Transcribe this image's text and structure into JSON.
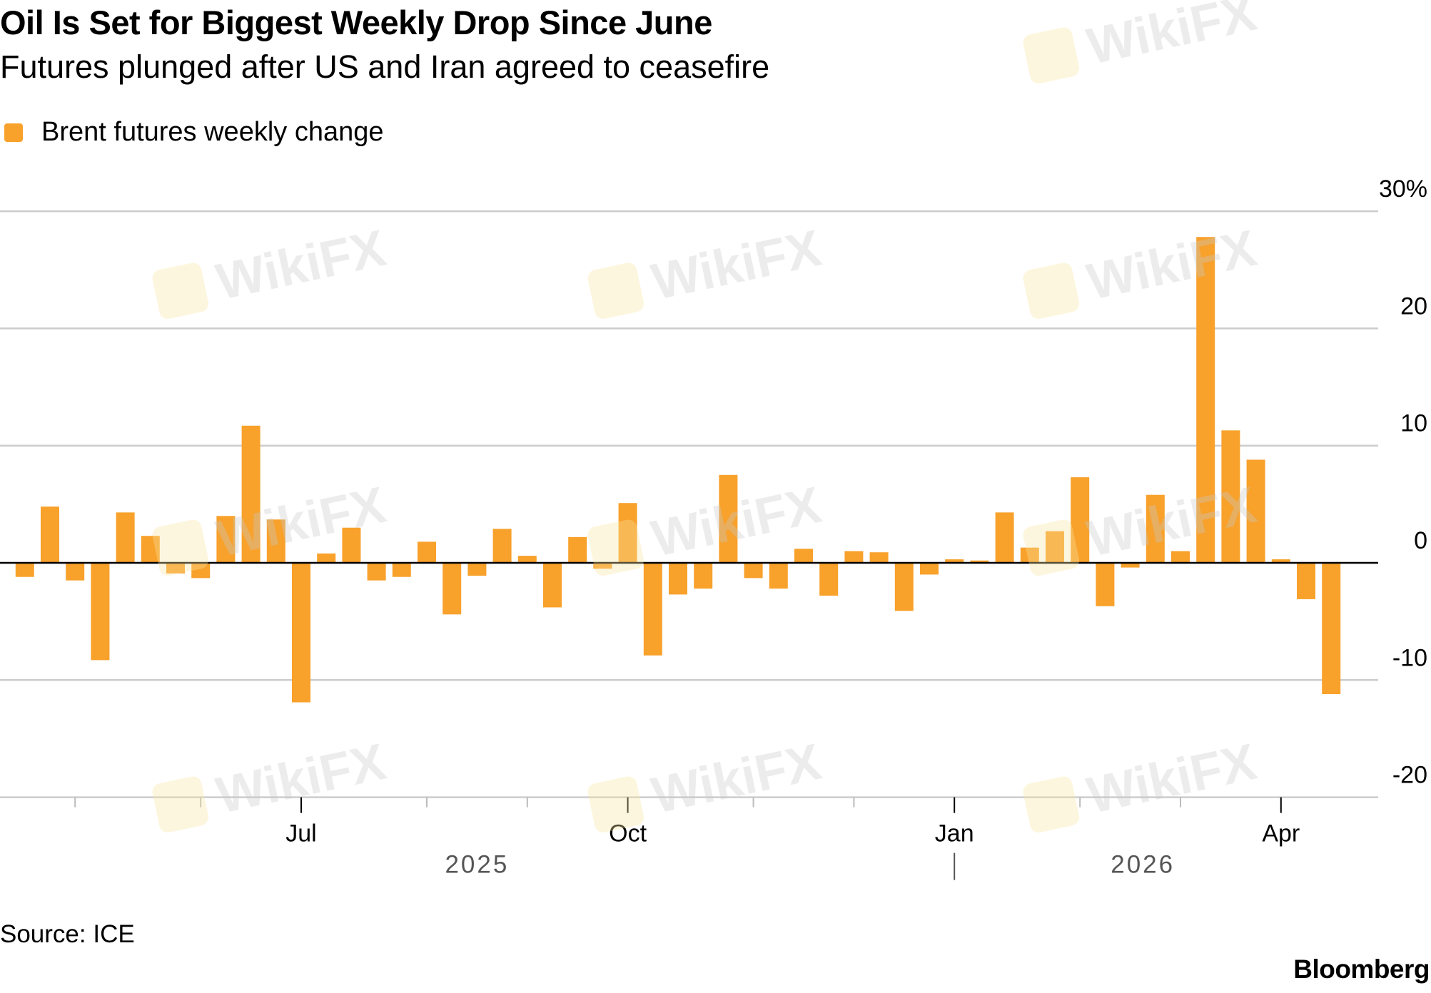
{
  "header": {
    "title": "Oil Is Set for Biggest Weekly Drop Since June",
    "subtitle": "Futures plunged after US and Iran agreed to ceasefire"
  },
  "footer": {
    "source": "Source: ICE",
    "brand": "Bloomberg"
  },
  "watermark": "WikiFX",
  "chart_data": {
    "type": "bar",
    "title": "Oil Is Set for Biggest Weekly Drop Since June",
    "subtitle": "Futures plunged after US and Iran agreed to ceasefire",
    "legend": {
      "position": "top-left"
    },
    "series": [
      {
        "name": "Brent futures weekly change",
        "color": "#F8A12B",
        "values": [
          -1.2,
          4.8,
          -1.5,
          -8.3,
          4.3,
          2.3,
          -0.9,
          -1.3,
          4.0,
          11.7,
          3.7,
          -11.9,
          0.8,
          3.0,
          -1.5,
          -1.2,
          1.8,
          -4.4,
          -1.1,
          2.9,
          0.6,
          -3.8,
          2.2,
          -0.5,
          5.1,
          -7.9,
          -2.7,
          -2.2,
          7.5,
          -1.3,
          -2.2,
          1.2,
          -2.8,
          1.0,
          0.9,
          -4.1,
          -1.0,
          0.3,
          0.2,
          4.3,
          1.3,
          2.7,
          7.3,
          -3.7,
          -0.4,
          5.8,
          1.0,
          27.8,
          11.3,
          8.8,
          0.3,
          -3.1,
          -11.2
        ]
      }
    ],
    "x": [
      "2025-04-17",
      "2025-04-24",
      "2025-05-01",
      "2025-05-08",
      "2025-05-15",
      "2025-05-22",
      "2025-05-29",
      "2025-06-05",
      "2025-06-12",
      "2025-06-19",
      "2025-06-26",
      "2025-07-03",
      "2025-07-10",
      "2025-07-17",
      "2025-07-24",
      "2025-07-31",
      "2025-08-07",
      "2025-08-14",
      "2025-08-21",
      "2025-08-28",
      "2025-09-04",
      "2025-09-11",
      "2025-09-18",
      "2025-09-25",
      "2025-10-02",
      "2025-10-09",
      "2025-10-16",
      "2025-10-23",
      "2025-10-30",
      "2025-11-06",
      "2025-11-13",
      "2025-11-20",
      "2025-11-27",
      "2025-12-04",
      "2025-12-11",
      "2025-12-18",
      "2025-12-25",
      "2026-01-01",
      "2026-01-08",
      "2026-01-15",
      "2026-01-22",
      "2026-01-29",
      "2026-02-05",
      "2026-02-12",
      "2026-02-19",
      "2026-02-26",
      "2026-03-05",
      "2026-03-12",
      "2026-03-19",
      "2026-03-26",
      "2026-04-02",
      "2026-04-09",
      "2026-04-16"
    ],
    "xlabel": "",
    "ylabel": "",
    "ylim": [
      -20,
      30
    ],
    "y_ticks": [
      {
        "value": 30,
        "label": "30%"
      },
      {
        "value": 20,
        "label": "20"
      },
      {
        "value": 10,
        "label": "10"
      },
      {
        "value": 0,
        "label": "0"
      },
      {
        "value": -10,
        "label": "-10"
      },
      {
        "value": -20,
        "label": "-20"
      }
    ],
    "x_month_labels": [
      {
        "month": "2025-07",
        "label": "Jul"
      },
      {
        "month": "2025-10",
        "label": "Oct"
      },
      {
        "month": "2026-01",
        "label": "Jan"
      },
      {
        "month": "2026-04",
        "label": "Apr"
      }
    ],
    "x_year_labels": [
      {
        "year": "2025",
        "label": "2025"
      },
      {
        "year": "2026",
        "label": "2026"
      }
    ],
    "grid": true,
    "zero_line_color": "#000000",
    "grid_color": "#CCCCCC"
  }
}
